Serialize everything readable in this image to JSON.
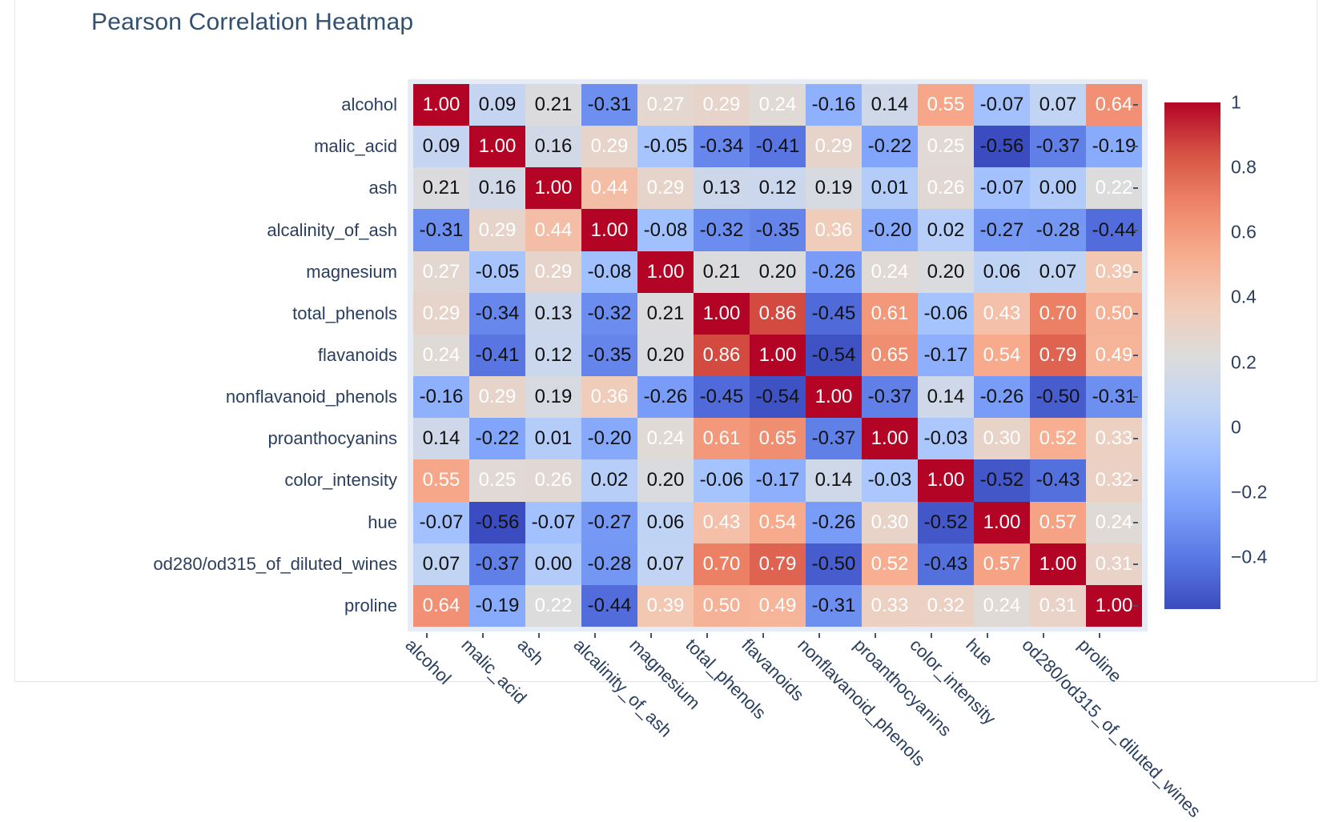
{
  "chart_data": {
    "type": "heatmap",
    "title": "Pearson Correlation Heatmap",
    "features": [
      "alcohol",
      "malic_acid",
      "ash",
      "alcalinity_of_ash",
      "magnesium",
      "total_phenols",
      "flavanoids",
      "nonflavanoid_phenols",
      "proanthocyanins",
      "color_intensity",
      "hue",
      "od280/od315_of_diluted_wines",
      "proline"
    ],
    "x_categories": [
      "alcohol",
      "malic_acid",
      "ash",
      "alcalinity_of_ash",
      "magnesium",
      "total_phenols",
      "flavanoids",
      "nonflavanoid_phenols",
      "proanthocyanins",
      "color_intensity",
      "hue",
      "od280/od315_of_diluted_wines",
      "proline"
    ],
    "y_categories": [
      "alcohol",
      "malic_acid",
      "ash",
      "alcalinity_of_ash",
      "magnesium",
      "total_phenols",
      "flavanoids",
      "nonflavanoid_phenols",
      "proanthocyanins",
      "color_intensity",
      "hue",
      "od280/od315_of_diluted_wines",
      "proline"
    ],
    "matrix": [
      [
        1.0,
        0.09,
        0.21,
        -0.31,
        0.27,
        0.29,
        0.24,
        -0.16,
        0.14,
        0.55,
        -0.07,
        0.07,
        0.64
      ],
      [
        0.09,
        1.0,
        0.16,
        0.29,
        -0.05,
        -0.34,
        -0.41,
        0.29,
        -0.22,
        0.25,
        -0.56,
        -0.37,
        -0.19
      ],
      [
        0.21,
        0.16,
        1.0,
        0.44,
        0.29,
        0.13,
        0.12,
        0.19,
        0.01,
        0.26,
        -0.07,
        0.0,
        0.22
      ],
      [
        -0.31,
        0.29,
        0.44,
        1.0,
        -0.08,
        -0.32,
        -0.35,
        0.36,
        -0.2,
        0.02,
        -0.27,
        -0.28,
        -0.44
      ],
      [
        0.27,
        -0.05,
        0.29,
        -0.08,
        1.0,
        0.21,
        0.2,
        -0.26,
        0.24,
        0.2,
        0.06,
        0.07,
        0.39
      ],
      [
        0.29,
        -0.34,
        0.13,
        -0.32,
        0.21,
        1.0,
        0.86,
        -0.45,
        0.61,
        -0.06,
        0.43,
        0.7,
        0.5
      ],
      [
        0.24,
        -0.41,
        0.12,
        -0.35,
        0.2,
        0.86,
        1.0,
        -0.54,
        0.65,
        -0.17,
        0.54,
        0.79,
        0.49
      ],
      [
        -0.16,
        0.29,
        0.19,
        0.36,
        -0.26,
        -0.45,
        -0.54,
        1.0,
        -0.37,
        0.14,
        -0.26,
        -0.5,
        -0.31
      ],
      [
        0.14,
        -0.22,
        0.01,
        -0.2,
        0.24,
        0.61,
        0.65,
        -0.37,
        1.0,
        -0.03,
        0.3,
        0.52,
        0.33
      ],
      [
        0.55,
        0.25,
        0.26,
        0.02,
        0.2,
        -0.06,
        -0.17,
        0.14,
        -0.03,
        1.0,
        -0.52,
        -0.43,
        0.32
      ],
      [
        -0.07,
        -0.56,
        -0.07,
        -0.27,
        0.06,
        0.43,
        0.54,
        -0.26,
        0.3,
        -0.52,
        1.0,
        0.57,
        0.24
      ],
      [
        0.07,
        -0.37,
        0.0,
        -0.28,
        0.07,
        0.7,
        0.79,
        -0.5,
        0.52,
        -0.43,
        0.57,
        1.0,
        0.31
      ],
      [
        0.64,
        -0.19,
        0.22,
        -0.44,
        0.39,
        0.5,
        0.49,
        -0.31,
        0.33,
        0.32,
        0.24,
        0.31,
        1.0
      ]
    ],
    "value_format_decimals": 2,
    "vmin": -0.56,
    "vmax": 1.0,
    "colorscale": [
      [
        0.0,
        "#3b4cc0"
      ],
      [
        0.1,
        "#5977e3"
      ],
      [
        0.2,
        "#7b9ff9"
      ],
      [
        0.3,
        "#9ebeff"
      ],
      [
        0.4,
        "#c0d4f5"
      ],
      [
        0.5,
        "#dddcdc"
      ],
      [
        0.6,
        "#f2cbb7"
      ],
      [
        0.7,
        "#f7ac8e"
      ],
      [
        0.8,
        "#ee8468"
      ],
      [
        0.9,
        "#d65244"
      ],
      [
        1.0,
        "#b40426"
      ]
    ],
    "colorbar_ticks": [
      {
        "value": 1.0,
        "label": "1"
      },
      {
        "value": 0.8,
        "label": "0.8"
      },
      {
        "value": 0.6,
        "label": "0.6"
      },
      {
        "value": 0.4,
        "label": "0.4"
      },
      {
        "value": 0.2,
        "label": "0.2"
      },
      {
        "value": 0.0,
        "label": "0"
      },
      {
        "value": -0.2,
        "label": "−0.2"
      },
      {
        "value": -0.4,
        "label": "−0.4"
      }
    ],
    "legend_position": "right",
    "grid": false,
    "colors": {
      "title_text": "#31506f",
      "axis_label_text": "#2a3f5f",
      "plot_background": "#e5ecf6",
      "annotation_light": "#ffffff",
      "annotation_dark": "#111111",
      "card_border": "#e5e7ec"
    }
  }
}
